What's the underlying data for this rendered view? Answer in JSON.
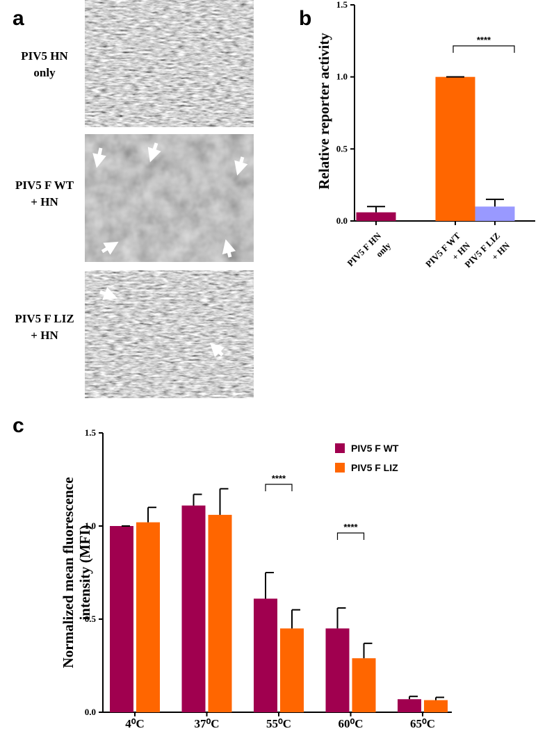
{
  "panel_a": {
    "label": "a",
    "rows": [
      {
        "label": [
          "PIV5 HN",
          "only"
        ]
      },
      {
        "label": [
          "PIV5 F WT",
          "+ HN"
        ]
      },
      {
        "label": [
          "PIV5 F LIZ",
          "+ HN"
        ]
      }
    ]
  },
  "chart_data": [
    {
      "type": "bar",
      "panel": "b",
      "ylabel": "Relative reporter activity",
      "categories": [
        [
          "PIV5 F HN",
          "only"
        ],
        [
          "PIV5 F WT",
          "+ HN"
        ],
        [
          "PIV5 F LIZ",
          "+ HN"
        ]
      ],
      "values": [
        0.06,
        1.0,
        0.1
      ],
      "errors": [
        0.04,
        0,
        0.05
      ],
      "colors": [
        "#a0004f",
        "#ff6600",
        "#9999ff"
      ],
      "ylim": [
        0,
        1.5
      ],
      "yticks": [
        {
          "value": 0,
          "label": "0.0"
        },
        0.5,
        {
          "value": 1,
          "label": "1.0"
        },
        1.5
      ],
      "annotations": [
        "****"
      ]
    },
    {
      "type": "grouped_bar",
      "panel": "c",
      "ylabel": [
        "Normalized mean fluorescence",
        "intensity (MFI)"
      ],
      "categories": [
        "4⁰C",
        "37⁰C",
        "55⁰C",
        "60⁰C",
        "65⁰C"
      ],
      "series": [
        {
          "name": "PIV5  F WT",
          "color": "#a0004f",
          "values": [
            1.0,
            1.11,
            0.61,
            0.45,
            0.07
          ],
          "errors": [
            0,
            0.06,
            0.14,
            0.11,
            0.015
          ]
        },
        {
          "name": "PIV5  F LIZ",
          "color": "#ff6600",
          "values": [
            1.02,
            1.06,
            0.45,
            0.29,
            0.065
          ],
          "errors": [
            0.08,
            0.14,
            0.1,
            0.08,
            0.015
          ]
        }
      ],
      "ylim": [
        0,
        1.5
      ],
      "yticks": [
        {
          "value": 0,
          "label": "0.0"
        },
        0.5,
        {
          "value": 1,
          "label": "1.0"
        },
        1.5
      ],
      "annotations": [
        "****",
        "****"
      ]
    }
  ]
}
